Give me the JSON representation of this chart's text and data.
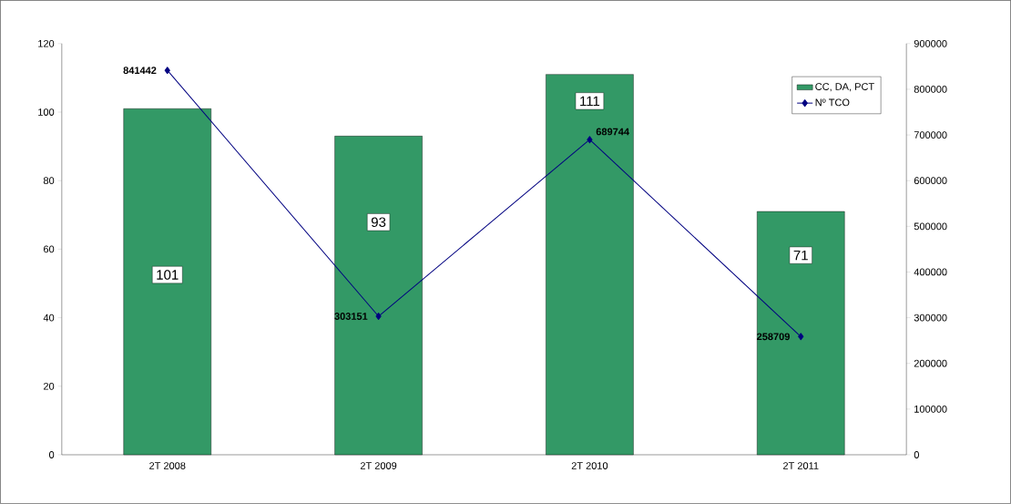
{
  "chart_data": {
    "type": "bar",
    "categories": [
      "2T 2008",
      "2T 2009",
      "2T 2010",
      "2T 2011"
    ],
    "series": [
      {
        "name": "CC, DA, PCT",
        "color": "#339966",
        "values": [
          101,
          93,
          111,
          71
        ]
      },
      {
        "name": "Nº TCO",
        "type": "line",
        "axis": "y2",
        "color": "#000080",
        "marker": "diamond",
        "values": [
          841442,
          303151,
          689744,
          258709
        ]
      }
    ],
    "ylim": [
      0,
      120
    ],
    "yticks": [
      0,
      20,
      40,
      60,
      80,
      100,
      120
    ],
    "y2lim": [
      0,
      900000
    ],
    "y2ticks": [
      0,
      100000,
      200000,
      300000,
      400000,
      500000,
      600000,
      700000,
      800000,
      900000
    ],
    "data_labels": true,
    "grid": false,
    "legend": "top right"
  }
}
